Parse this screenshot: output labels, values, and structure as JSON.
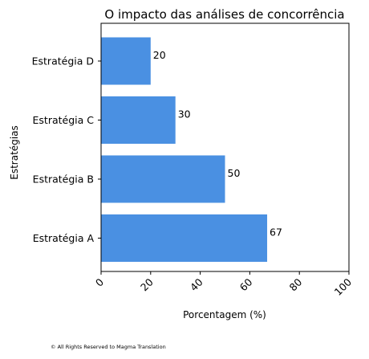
{
  "chart_data": {
    "type": "bar",
    "orientation": "horizontal",
    "title": "O impacto das análises de concorrência",
    "xlabel": "Porcentagem (%)",
    "ylabel": "Estratégias",
    "categories": [
      "Estratégia A",
      "Estratégia B",
      "Estratégia C",
      "Estratégia D"
    ],
    "values": [
      67,
      50,
      30,
      20
    ],
    "data_labels": [
      "67",
      "50",
      "30",
      "20"
    ],
    "xlim": [
      0,
      100
    ],
    "xticks": [
      "0",
      "20",
      "40",
      "60",
      "80",
      "100"
    ],
    "grid": false,
    "bar_color": "#4a90e2"
  },
  "footer": "© All Rights Reserved to Magma Translation"
}
